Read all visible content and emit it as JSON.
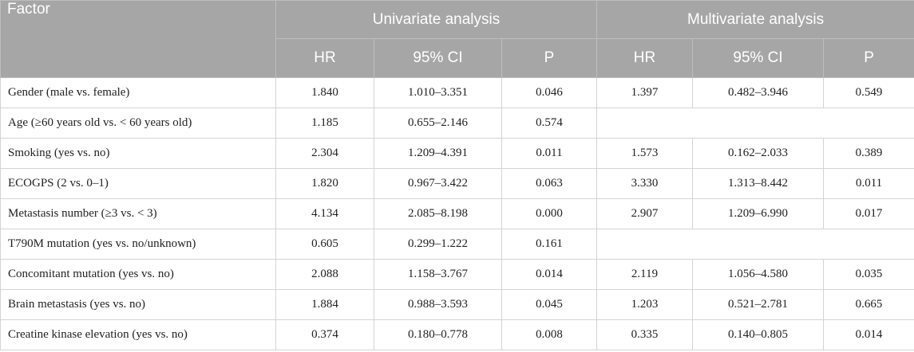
{
  "header": {
    "factor": "Factor",
    "univariate": "Univariate analysis",
    "multivariate": "Multivariate analysis",
    "sub": {
      "hr": "HR",
      "ci": "95% CI",
      "p": "P"
    }
  },
  "rows": [
    {
      "factor": "Gender (male vs. female)",
      "u_hr": "1.840",
      "u_ci": "1.010–3.351",
      "u_p": "0.046",
      "m_hr": "1.397",
      "m_ci": "0.482–3.946",
      "m_p": "0.549"
    },
    {
      "factor": "Age (≥60 years old vs. < 60 years old)",
      "u_hr": "1.185",
      "u_ci": "0.655–2.146",
      "u_p": "0.574",
      "m_hr": "",
      "m_ci": "",
      "m_p": ""
    },
    {
      "factor": "Smoking (yes vs. no)",
      "u_hr": "2.304",
      "u_ci": "1.209–4.391",
      "u_p": "0.011",
      "m_hr": "1.573",
      "m_ci": "0.162–2.033",
      "m_p": "0.389"
    },
    {
      "factor": "ECOGPS (2 vs. 0–1)",
      "u_hr": "1.820",
      "u_ci": "0.967–3.422",
      "u_p": "0.063",
      "m_hr": "3.330",
      "m_ci": "1.313–8.442",
      "m_p": "0.011"
    },
    {
      "factor": "Metastasis number (≥3 vs. < 3)",
      "u_hr": "4.134",
      "u_ci": "2.085–8.198",
      "u_p": "0.000",
      "m_hr": "2.907",
      "m_ci": "1.209–6.990",
      "m_p": "0.017"
    },
    {
      "factor": "T790M mutation (yes vs. no/unknown)",
      "u_hr": "0.605",
      "u_ci": "0.299–1.222",
      "u_p": "0.161",
      "m_hr": "",
      "m_ci": "",
      "m_p": ""
    },
    {
      "factor": "Concomitant mutation (yes vs. no)",
      "u_hr": "2.088",
      "u_ci": "1.158–3.767",
      "u_p": "0.014",
      "m_hr": "2.119",
      "m_ci": "1.056–4.580",
      "m_p": "0.035"
    },
    {
      "factor": "Brain metastasis (yes vs. no)",
      "u_hr": "1.884",
      "u_ci": "0.988–3.593",
      "u_p": "0.045",
      "m_hr": "1.203",
      "m_ci": "0.521–2.781",
      "m_p": "0.665"
    },
    {
      "factor": "Creatine kinase elevation (yes vs. no)",
      "u_hr": "0.374",
      "u_ci": "0.180–0.778",
      "u_p": "0.008",
      "m_hr": "0.335",
      "m_ci": "0.140–0.805",
      "m_p": "0.014"
    }
  ]
}
